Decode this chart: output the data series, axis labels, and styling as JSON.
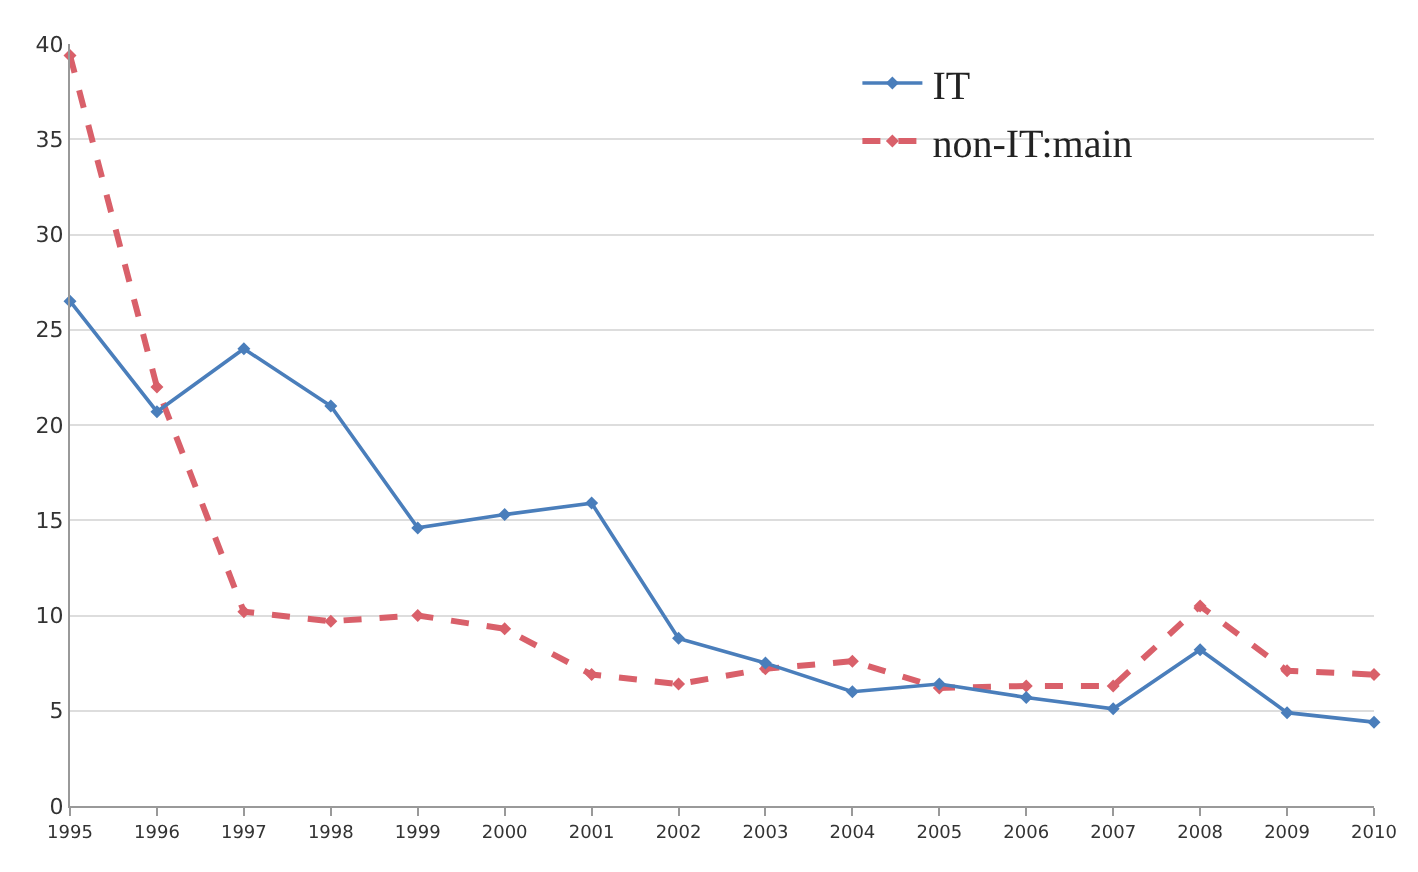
{
  "chart_data": {
    "type": "line",
    "categories": [
      "1995",
      "1996",
      "1997",
      "1998",
      "1999",
      "2000",
      "2001",
      "2002",
      "2003",
      "2004",
      "2005",
      "2006",
      "2007",
      "2008",
      "2009",
      "2010"
    ],
    "series": [
      {
        "name": "IT",
        "color": "#4a7ebb",
        "line_style": "solid",
        "values": [
          26.5,
          20.7,
          24,
          21,
          14.6,
          15.3,
          15.9,
          8.8,
          7.5,
          6,
          6.4,
          5.7,
          5.1,
          8.2,
          4.9,
          4.4
        ]
      },
      {
        "name": "non-IT:main",
        "color": "#d9606a",
        "line_style": "dashed",
        "values": [
          39.4,
          22,
          10.2,
          9.7,
          10,
          9.3,
          6.9,
          6.4,
          7.2,
          7.6,
          6.2,
          6.3,
          6.3,
          10.5,
          7.1,
          6.9
        ]
      }
    ],
    "ylim": [
      0,
      40
    ],
    "yticks": [
      0,
      5,
      10,
      15,
      20,
      25,
      30,
      35,
      40
    ],
    "grid": "y",
    "legend": "top right",
    "marker": "diamond"
  }
}
